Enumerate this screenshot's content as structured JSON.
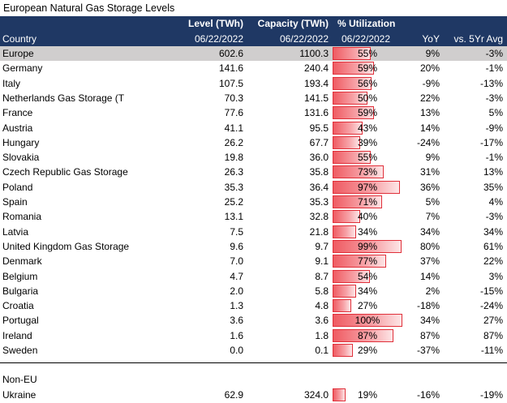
{
  "title": "European Natural Gas Storage Levels",
  "header": {
    "country": "Country",
    "level": "Level (TWh)",
    "level_date": "06/22/2022",
    "capacity": "Capacity (TWh)",
    "capacity_date": "06/22/2022",
    "util": "% Utilization",
    "util_date": "06/22/2022",
    "yoy": "YoY",
    "vs5yr": "vs. 5Yr Avg"
  },
  "rows": [
    {
      "country": "Europe",
      "level": "602.6",
      "capacity": "1100.3",
      "util": "55%",
      "util_value": 55,
      "yoy": "9%",
      "vs5yr": "-3%"
    },
    {
      "country": "Germany",
      "level": "141.6",
      "capacity": "240.4",
      "util": "59%",
      "util_value": 59,
      "yoy": "20%",
      "vs5yr": "-1%"
    },
    {
      "country": "Italy",
      "level": "107.5",
      "capacity": "193.4",
      "util": "56%",
      "util_value": 56,
      "yoy": "-9%",
      "vs5yr": "-13%"
    },
    {
      "country": "Netherlands Gas Storage (T",
      "level": "70.3",
      "capacity": "141.5",
      "util": "50%",
      "util_value": 50,
      "yoy": "22%",
      "vs5yr": "-3%"
    },
    {
      "country": "France",
      "level": "77.6",
      "capacity": "131.6",
      "util": "59%",
      "util_value": 59,
      "yoy": "13%",
      "vs5yr": "5%"
    },
    {
      "country": "Austria",
      "level": "41.1",
      "capacity": "95.5",
      "util": "43%",
      "util_value": 43,
      "yoy": "14%",
      "vs5yr": "-9%"
    },
    {
      "country": "Hungary",
      "level": "26.2",
      "capacity": "67.7",
      "util": "39%",
      "util_value": 39,
      "yoy": "-24%",
      "vs5yr": "-17%"
    },
    {
      "country": "Slovakia",
      "level": "19.8",
      "capacity": "36.0",
      "util": "55%",
      "util_value": 55,
      "yoy": "9%",
      "vs5yr": "-1%"
    },
    {
      "country": "Czech Republic Gas Storage",
      "level": "26.3",
      "capacity": "35.8",
      "util": "73%",
      "util_value": 73,
      "yoy": "31%",
      "vs5yr": "13%"
    },
    {
      "country": "Poland",
      "level": "35.3",
      "capacity": "36.4",
      "util": "97%",
      "util_value": 97,
      "yoy": "36%",
      "vs5yr": "35%"
    },
    {
      "country": "Spain",
      "level": "25.2",
      "capacity": "35.3",
      "util": "71%",
      "util_value": 71,
      "yoy": "5%",
      "vs5yr": "4%"
    },
    {
      "country": "Romania",
      "level": "13.1",
      "capacity": "32.8",
      "util": "40%",
      "util_value": 40,
      "yoy": "7%",
      "vs5yr": "-3%"
    },
    {
      "country": "Latvia",
      "level": "7.5",
      "capacity": "21.8",
      "util": "34%",
      "util_value": 34,
      "yoy": "34%",
      "vs5yr": "34%"
    },
    {
      "country": "United Kingdom Gas Storage",
      "level": "9.6",
      "capacity": "9.7",
      "util": "99%",
      "util_value": 99,
      "yoy": "80%",
      "vs5yr": "61%"
    },
    {
      "country": "Denmark",
      "level": "7.0",
      "capacity": "9.1",
      "util": "77%",
      "util_value": 77,
      "yoy": "37%",
      "vs5yr": "22%"
    },
    {
      "country": "Belgium",
      "level": "4.7",
      "capacity": "8.7",
      "util": "54%",
      "util_value": 54,
      "yoy": "14%",
      "vs5yr": "3%"
    },
    {
      "country": "Bulgaria",
      "level": "2.0",
      "capacity": "5.8",
      "util": "34%",
      "util_value": 34,
      "yoy": "2%",
      "vs5yr": "-15%"
    },
    {
      "country": "Croatia",
      "level": "1.3",
      "capacity": "4.8",
      "util": "27%",
      "util_value": 27,
      "yoy": "-18%",
      "vs5yr": "-24%"
    },
    {
      "country": "Portugal",
      "level": "3.6",
      "capacity": "3.6",
      "util": "100%",
      "util_value": 100,
      "yoy": "34%",
      "vs5yr": "27%"
    },
    {
      "country": "Ireland",
      "level": "1.6",
      "capacity": "1.8",
      "util": "87%",
      "util_value": 87,
      "yoy": "87%",
      "vs5yr": "87%"
    },
    {
      "country": "Sweden",
      "level": "0.0",
      "capacity": "0.1",
      "util": "29%",
      "util_value": 29,
      "yoy": "-37%",
      "vs5yr": "-11%"
    }
  ],
  "non_eu_label": "Non-EU",
  "non_eu_rows": [
    {
      "country": "Ukraine",
      "level": "62.9",
      "capacity": "324.0",
      "util": "19%",
      "util_value": 19,
      "yoy": "-16%",
      "vs5yr": "-19%"
    }
  ],
  "colors": {
    "header_bg": "#1f3864",
    "highlight_row": "#d0cece",
    "bar_border": "#e0303a",
    "bar_fill": "#ef5b62"
  }
}
